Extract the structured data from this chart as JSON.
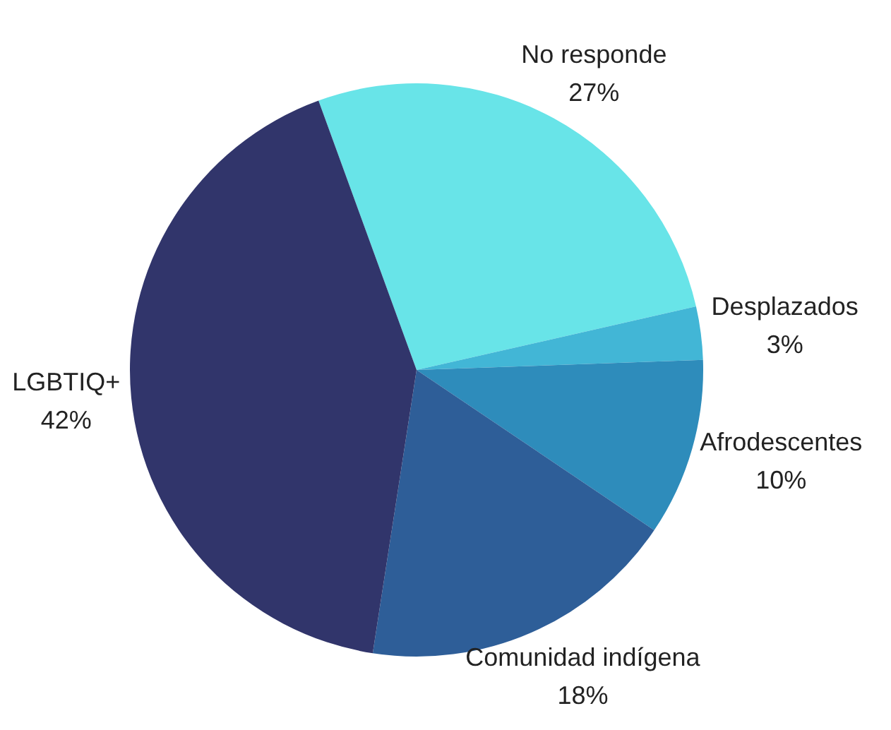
{
  "chart_data": {
    "type": "pie",
    "categories": [
      "No responde",
      "Desplazados",
      "Afrodescentes",
      "Comunidad indígena",
      "LGBTIQ+"
    ],
    "values": [
      27,
      3,
      10,
      18,
      42
    ],
    "colors": [
      "#68e4e8",
      "#42b6d6",
      "#2e8cbb",
      "#2e5e98",
      "#31356b"
    ],
    "value_labels": [
      "27%",
      "3%",
      "10%",
      "18%",
      "42%"
    ],
    "legend": false
  }
}
